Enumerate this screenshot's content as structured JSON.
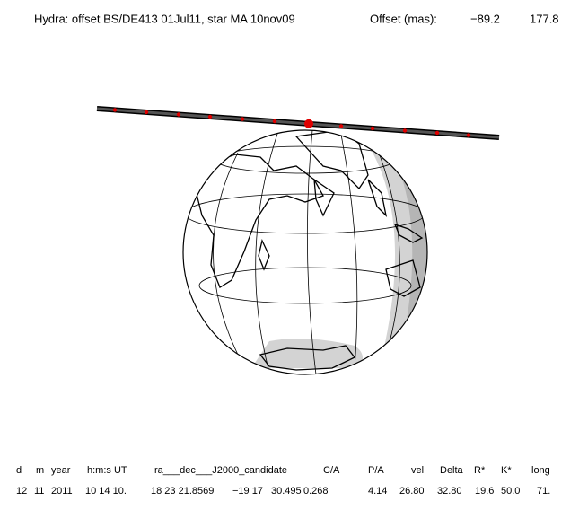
{
  "header": {
    "title": "Hydra: offset BS/DE413 01Jul11, star MA 10nov09",
    "offset_label": "Offset (mas):",
    "offset_x": "−89.2",
    "offset_y": "177.8"
  },
  "table": {
    "headers": [
      "d",
      "m",
      "year",
      "h:m:s UT",
      "ra___dec___J2000_candidate",
      "C/A",
      "P/A",
      "vel",
      "Delta",
      "R*",
      "K*",
      "long"
    ],
    "rows": [
      [
        "12",
        "11",
        "2011",
        "10 14 10.",
        "18 23 21.8569",
        "−19 17",
        "30.495",
        "0.268",
        "4.14",
        "26.80",
        "32.80",
        "19.6",
        "50.0",
        "71."
      ]
    ]
  }
}
